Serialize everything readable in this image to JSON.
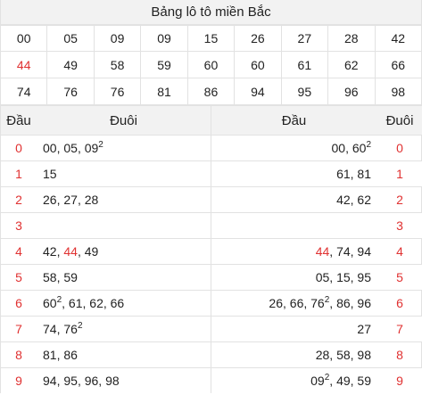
{
  "title": "Bảng lô tô miền Bắc",
  "numbers": [
    [
      "00",
      "05",
      "09",
      "09",
      "15",
      "26",
      "27",
      "28",
      "42"
    ],
    [
      "44",
      "49",
      "58",
      "59",
      "60",
      "60",
      "61",
      "62",
      "66"
    ],
    [
      "74",
      "76",
      "76",
      "81",
      "86",
      "94",
      "95",
      "96",
      "98"
    ]
  ],
  "highlight_number": "44",
  "headers": {
    "dau_left": "Đầu",
    "duoi_left": "Đuôi",
    "dau_right": "Đầu",
    "duoi_right": "Đuôi"
  },
  "rows": [
    {
      "digit": "0",
      "left": [
        [
          "00",
          ""
        ],
        [
          "05",
          ""
        ],
        [
          "09",
          "2"
        ]
      ],
      "right": [
        [
          "00",
          ""
        ],
        [
          "60",
          "2"
        ]
      ]
    },
    {
      "digit": "1",
      "left": [
        [
          "15",
          ""
        ]
      ],
      "right": [
        [
          "61",
          ""
        ],
        [
          "81",
          ""
        ]
      ]
    },
    {
      "digit": "2",
      "left": [
        [
          "26",
          ""
        ],
        [
          "27",
          ""
        ],
        [
          "28",
          ""
        ]
      ],
      "right": [
        [
          "42",
          ""
        ],
        [
          "62",
          ""
        ]
      ]
    },
    {
      "digit": "3",
      "left": [],
      "right": []
    },
    {
      "digit": "4",
      "left": [
        [
          "42",
          ""
        ],
        [
          "44",
          ""
        ],
        [
          "49",
          ""
        ]
      ],
      "right": [
        [
          "44",
          ""
        ],
        [
          "74",
          ""
        ],
        [
          "94",
          ""
        ]
      ]
    },
    {
      "digit": "5",
      "left": [
        [
          "58",
          ""
        ],
        [
          "59",
          ""
        ]
      ],
      "right": [
        [
          "05",
          ""
        ],
        [
          "15",
          ""
        ],
        [
          "95",
          ""
        ]
      ]
    },
    {
      "digit": "6",
      "left": [
        [
          "60",
          "2"
        ],
        [
          "61",
          ""
        ],
        [
          "62",
          ""
        ],
        [
          "66",
          ""
        ]
      ],
      "right": [
        [
          "26",
          ""
        ],
        [
          "66",
          ""
        ],
        [
          "76",
          "2"
        ],
        [
          "86",
          ""
        ],
        [
          "96",
          ""
        ]
      ]
    },
    {
      "digit": "7",
      "left": [
        [
          "74",
          ""
        ],
        [
          "76",
          "2"
        ]
      ],
      "right": [
        [
          "27",
          ""
        ]
      ]
    },
    {
      "digit": "8",
      "left": [
        [
          "81",
          ""
        ],
        [
          "86",
          ""
        ]
      ],
      "right": [
        [
          "28",
          ""
        ],
        [
          "58",
          ""
        ],
        [
          "98",
          ""
        ]
      ]
    },
    {
      "digit": "9",
      "left": [
        [
          "94",
          ""
        ],
        [
          "95",
          ""
        ],
        [
          "96",
          ""
        ],
        [
          "98",
          ""
        ]
      ],
      "right": [
        [
          "09",
          "2"
        ],
        [
          "49",
          ""
        ],
        [
          "59",
          ""
        ]
      ]
    }
  ],
  "colors": {
    "accent_red": "#e03131",
    "header_bg": "#f2f2f2",
    "border": "#e2e2e2"
  }
}
